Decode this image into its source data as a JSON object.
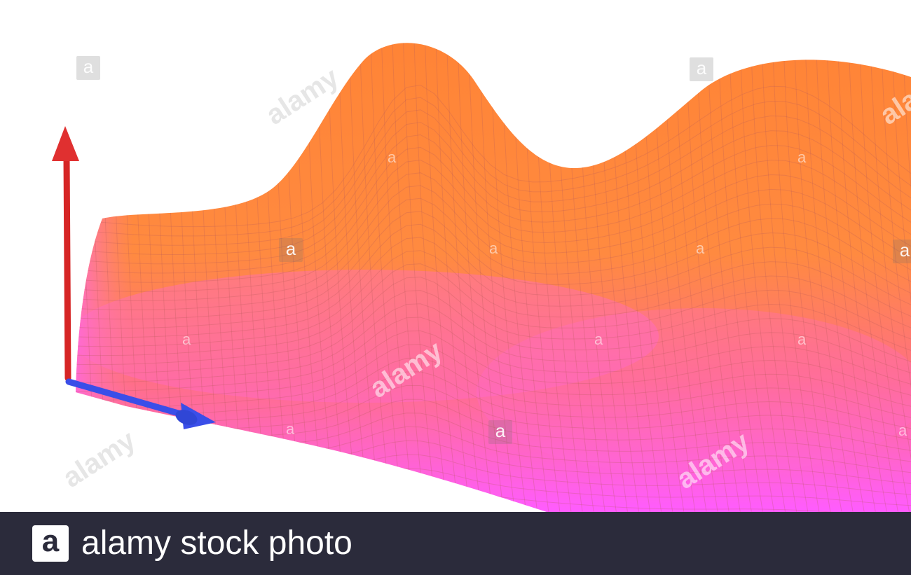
{
  "footer": {
    "logo_glyph": "a",
    "brand_text": "alamy stock photo"
  },
  "watermark": {
    "tile_glyph": "a",
    "wordmark": "alamy"
  },
  "colors": {
    "surface_top": "#ff8a3c",
    "surface_mid": "#ff7a70",
    "surface_bottom": "#ff66ff",
    "axis_vertical": "#e02a2a",
    "axis_horizontal": "#3a4ee8",
    "footer_bg": "#2b2b3b"
  }
}
